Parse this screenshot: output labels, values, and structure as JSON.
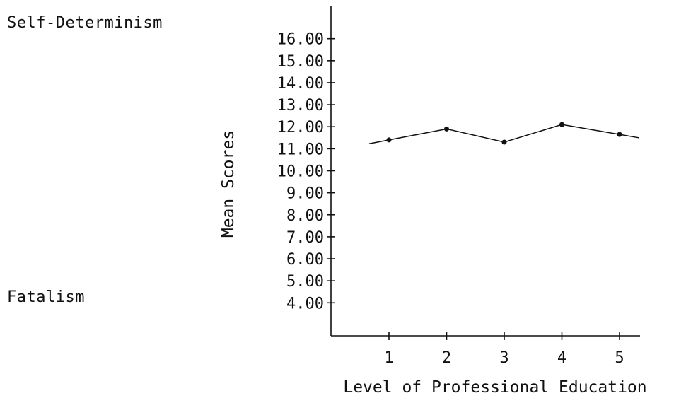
{
  "scale_poles": {
    "top": "Self-Determinism",
    "bottom": "Fatalism"
  },
  "chart_data": {
    "type": "line",
    "title": "",
    "xlabel": "Level of Professional Education",
    "ylabel": "Mean Scores",
    "categories": [
      "1",
      "2",
      "3",
      "4",
      "5"
    ],
    "y_tick_labels": [
      "16.00",
      "15.00",
      "14.00",
      "13.00",
      "12.00",
      "11.00",
      "10.00",
      "9.00",
      "8.00",
      "7.00",
      "6.00",
      "5.00",
      "4.00"
    ],
    "ylim": [
      2.5,
      17.5
    ],
    "grid": false,
    "series": [
      {
        "values": [
          11.4,
          11.9,
          11.3,
          12.1,
          11.65
        ]
      }
    ]
  }
}
